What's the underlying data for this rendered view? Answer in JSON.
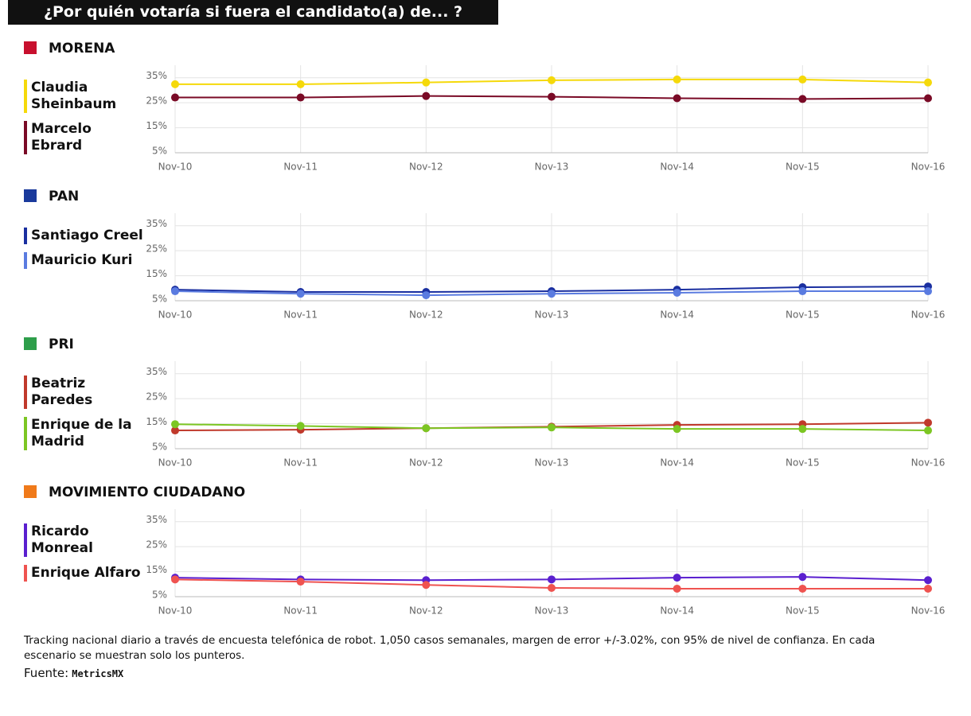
{
  "title": "¿Por quién votaría si fuera el candidato(a) de... ?",
  "chart_data": [
    {
      "type": "line",
      "title": "MORENA",
      "icon_color": "#c8102e",
      "categories": [
        "Nov-10",
        "Nov-11",
        "Nov-12",
        "Nov-13",
        "Nov-14",
        "Nov-15",
        "Nov-16"
      ],
      "series": [
        {
          "name": "Claudia Sheinbaum",
          "color": "#f5d90a",
          "values": [
            32.4,
            32.4,
            33.1,
            34.0,
            34.3,
            34.3,
            33.1
          ]
        },
        {
          "name": "Marcelo Ebrard",
          "color": "#7a0a26",
          "values": [
            27.1,
            27.1,
            27.7,
            27.4,
            26.8,
            26.5,
            26.8
          ]
        }
      ],
      "ylim": [
        5,
        40
      ],
      "yticks": [
        {
          "value": 5,
          "label": "5%"
        },
        {
          "value": 15,
          "label": "15%"
        },
        {
          "value": 25,
          "label": "25%"
        },
        {
          "value": 35,
          "label": "35%"
        }
      ],
      "grid": true
    },
    {
      "type": "line",
      "title": "PAN",
      "icon_color": "#1a3a9c",
      "categories": [
        "Nov-10",
        "Nov-11",
        "Nov-12",
        "Nov-13",
        "Nov-14",
        "Nov-15",
        "Nov-16"
      ],
      "series": [
        {
          "name": "Santiago Creel",
          "color": "#1a2fa0",
          "values": [
            9.4,
            8.5,
            8.5,
            8.8,
            9.4,
            10.4,
            10.7
          ]
        },
        {
          "name": "Mauricio Kuri",
          "color": "#5a7be0",
          "values": [
            8.8,
            7.8,
            7.2,
            7.8,
            8.2,
            8.8,
            8.8
          ]
        }
      ],
      "ylim": [
        5,
        40
      ],
      "yticks": [
        {
          "value": 5,
          "label": "5%"
        },
        {
          "value": 15,
          "label": "15%"
        },
        {
          "value": 25,
          "label": "25%"
        },
        {
          "value": 35,
          "label": "35%"
        }
      ],
      "grid": true
    },
    {
      "type": "line",
      "title": "PRI",
      "icon_color": "#2e9e4a",
      "categories": [
        "Nov-10",
        "Nov-11",
        "Nov-12",
        "Nov-13",
        "Nov-14",
        "Nov-15",
        "Nov-16"
      ],
      "series": [
        {
          "name": "Beatriz Paredes",
          "color": "#c0392b",
          "values": [
            12.3,
            12.6,
            13.2,
            13.8,
            14.5,
            14.8,
            15.4
          ]
        },
        {
          "name": "Enrique de la Madrid",
          "color": "#7cc623",
          "values": [
            14.8,
            14.1,
            13.2,
            13.5,
            12.9,
            12.9,
            12.3
          ]
        }
      ],
      "ylim": [
        5,
        40
      ],
      "yticks": [
        {
          "value": 5,
          "label": "5%"
        },
        {
          "value": 15,
          "label": "15%"
        },
        {
          "value": 25,
          "label": "25%"
        },
        {
          "value": 35,
          "label": "35%"
        }
      ],
      "grid": true
    },
    {
      "type": "line",
      "title": "MOVIMIENTO CIUDADANO",
      "icon_color": "#f07a1a",
      "categories": [
        "Nov-10",
        "Nov-11",
        "Nov-12",
        "Nov-13",
        "Nov-14",
        "Nov-15",
        "Nov-16"
      ],
      "series": [
        {
          "name": "Ricardo Monreal",
          "color": "#5a1fcf",
          "values": [
            12.6,
            11.9,
            11.6,
            11.9,
            12.6,
            12.9,
            11.6
          ]
        },
        {
          "name": "Enrique Alfaro",
          "color": "#ef5350",
          "values": [
            11.9,
            11.0,
            9.7,
            8.5,
            8.2,
            8.2,
            8.2
          ]
        }
      ],
      "ylim": [
        5,
        40
      ],
      "yticks": [
        {
          "value": 5,
          "label": "5%"
        },
        {
          "value": 15,
          "label": "15%"
        },
        {
          "value": 25,
          "label": "25%"
        },
        {
          "value": 35,
          "label": "35%"
        }
      ],
      "grid": true
    }
  ],
  "note": "Tracking nacional diario a través de encuesta telefónica de robot. 1,050 casos semanales, margen de error +/-3.02%, con 95% de nivel de confianza. En cada escenario se muestran solo los punteros.",
  "source_label": "Fuente:",
  "source_logo": "MetricsMX"
}
